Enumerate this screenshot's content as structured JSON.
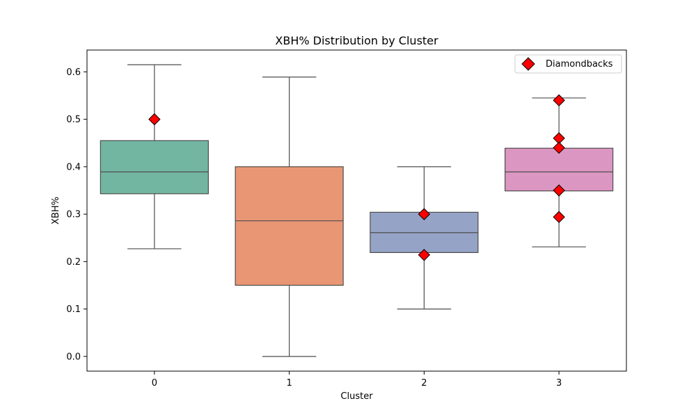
{
  "chart_data": {
    "type": "box",
    "title": "XBH% Distribution by Cluster",
    "xlabel": "Cluster",
    "ylabel": "XBH%",
    "categories": [
      "0",
      "1",
      "2",
      "3"
    ],
    "ylim": [
      -0.031,
      0.646
    ],
    "yticks": [
      0.0,
      0.1,
      0.2,
      0.3,
      0.4,
      0.5,
      0.6
    ],
    "ytick_labels": [
      "0.0",
      "0.1",
      "0.2",
      "0.3",
      "0.4",
      "0.5",
      "0.6"
    ],
    "grid": false,
    "legend": {
      "position": "top-right",
      "entries": [
        "Diamondbacks"
      ]
    },
    "boxes": [
      {
        "category": "0",
        "whisker_low": 0.227,
        "q1": 0.343,
        "median": 0.389,
        "q3": 0.455,
        "whisker_high": 0.615,
        "color": "#72b6a1"
      },
      {
        "category": "1",
        "whisker_low": 0.0,
        "q1": 0.15,
        "median": 0.286,
        "q3": 0.4,
        "whisker_high": 0.589,
        "color": "#e99675"
      },
      {
        "category": "2",
        "whisker_low": 0.1,
        "q1": 0.219,
        "median": 0.261,
        "q3": 0.304,
        "whisker_high": 0.4,
        "color": "#95a3c6"
      },
      {
        "category": "3",
        "whisker_low": 0.231,
        "q1": 0.349,
        "median": 0.389,
        "q3": 0.439,
        "whisker_high": 0.545,
        "color": "#dc96c2"
      }
    ],
    "series": [
      {
        "name": "Diamondbacks",
        "marker": "diamond",
        "color": "#ff0000",
        "points": [
          {
            "category": "0",
            "value": 0.5
          },
          {
            "category": "2",
            "value": 0.3
          },
          {
            "category": "2",
            "value": 0.214
          },
          {
            "category": "3",
            "value": 0.54
          },
          {
            "category": "3",
            "value": 0.46
          },
          {
            "category": "3",
            "value": 0.44
          },
          {
            "category": "3",
            "value": 0.35
          },
          {
            "category": "3",
            "value": 0.294
          }
        ]
      }
    ]
  }
}
